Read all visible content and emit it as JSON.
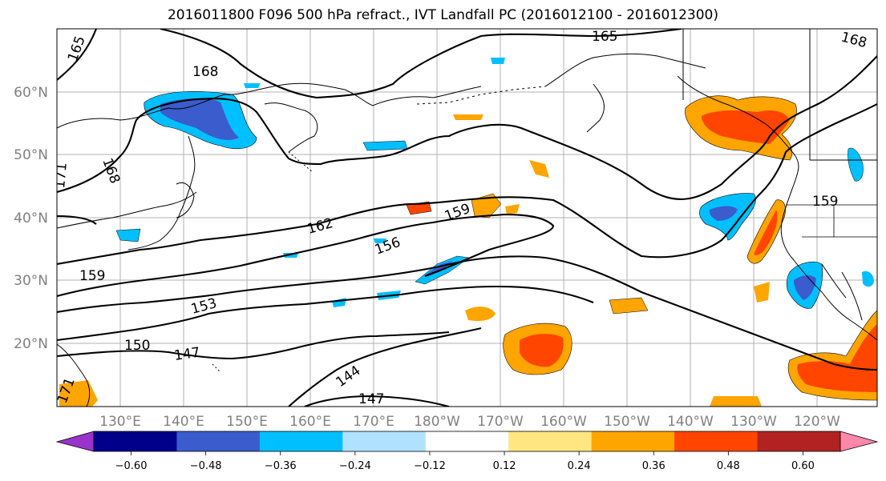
{
  "title": "2016011800 F096 500 hPa refract., IVT Landfall PC (2016012100 - 2016012300)",
  "lat_labels": [
    "60°N",
    "50°N",
    "40°N",
    "30°N",
    "20°N"
  ],
  "lon_labels": [
    "130°E",
    "140°E",
    "150°E",
    "160°E",
    "170°E",
    "180°W",
    "170°W",
    "160°W",
    "150°W",
    "140°W",
    "130°W",
    "120°W"
  ],
  "contour_labels": [
    "165",
    "168",
    "165",
    "168",
    "171",
    "168",
    "162",
    "159",
    "156",
    "159",
    "159",
    "153",
    "150",
    "147",
    "144",
    "147",
    "171"
  ],
  "colorbar": {
    "colors": [
      "#9933cc",
      "#00008b",
      "#3a5ccc",
      "#00bfff",
      "#b0e2ff",
      "#ffffff",
      "#ffe680",
      "#ffa500",
      "#ff4500",
      "#b22222",
      "#ff88aa"
    ],
    "ticks": [
      "−0.60",
      "−0.48",
      "−0.36",
      "−0.24",
      "−0.12",
      "0.12",
      "0.24",
      "0.36",
      "0.48",
      "0.60"
    ]
  },
  "colors": {
    "grid": "#b0b0b0",
    "coast": "#000000",
    "contour": "#000000",
    "neg_light": "#00bfff",
    "neg_mid": "#3a5ccc",
    "pos_light": "#ffa500",
    "pos_mid": "#ff4500",
    "pos_pale": "#ffe680"
  }
}
